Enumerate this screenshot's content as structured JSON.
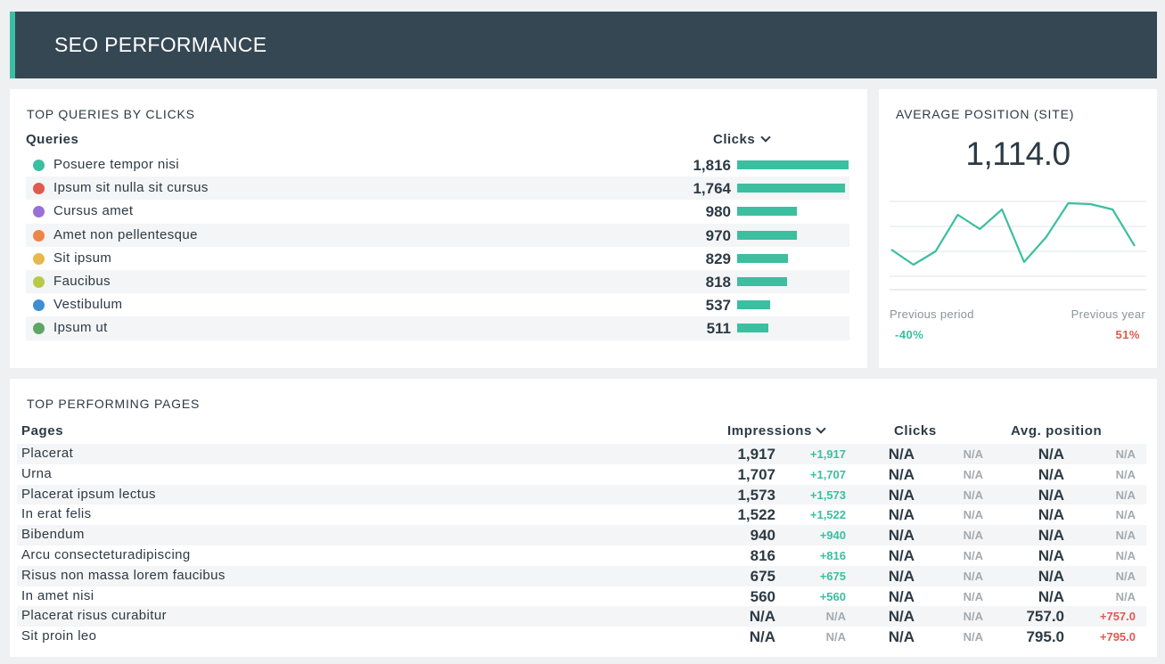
{
  "header": {
    "title": "SEO PERFORMANCE"
  },
  "queries": {
    "title": "TOP QUERIES BY CLICKS",
    "col_left": "Queries",
    "col_right": "Clicks",
    "max": 1816,
    "rows": [
      {
        "label": "Posuere tempor nisi",
        "value": "1,816",
        "num": 1816,
        "color": "#3bbfa0"
      },
      {
        "label": "Ipsum sit nulla sit cursus",
        "value": "1,764",
        "num": 1764,
        "color": "#e05a4f"
      },
      {
        "label": "Cursus amet",
        "value": "980",
        "num": 980,
        "color": "#9a6fd8"
      },
      {
        "label": "Amet non pellentesque",
        "value": "970",
        "num": 970,
        "color": "#ee8548"
      },
      {
        "label": "Sit ipsum",
        "value": "829",
        "num": 829,
        "color": "#e8b84a"
      },
      {
        "label": "Faucibus",
        "value": "818",
        "num": 818,
        "color": "#b8c94a"
      },
      {
        "label": "Vestibulum",
        "value": "537",
        "num": 537,
        "color": "#3d8fcf"
      },
      {
        "label": "Ipsum ut",
        "value": "511",
        "num": 511,
        "color": "#5ea566"
      }
    ]
  },
  "avg_position": {
    "title": "AVERAGE POSITION (SITE)",
    "value": "1,114.0",
    "prev_period_label": "Previous period",
    "prev_period_value": "-40%",
    "prev_year_label": "Previous year",
    "prev_year_value": "51%",
    "sparkline": [
      0.52,
      0.69,
      0.54,
      0.13,
      0.29,
      0.07,
      0.66,
      0.38,
      0.0,
      0.01,
      0.07,
      0.48
    ],
    "line_color": "#3bbfa0"
  },
  "pages": {
    "title": "TOP PERFORMING PAGES",
    "col_pages": "Pages",
    "col_impressions": "Impressions",
    "col_clicks": "Clicks",
    "col_avgpos": "Avg. position",
    "rows": [
      {
        "name": "Placerat",
        "imp": "1,917",
        "imp_d": "+1,917",
        "clk": "N/A",
        "clk_d": "N/A",
        "pos": "N/A",
        "pos_d": "N/A"
      },
      {
        "name": "Urna",
        "imp": "1,707",
        "imp_d": "+1,707",
        "clk": "N/A",
        "clk_d": "N/A",
        "pos": "N/A",
        "pos_d": "N/A"
      },
      {
        "name": "Placerat ipsum lectus",
        "imp": "1,573",
        "imp_d": "+1,573",
        "clk": "N/A",
        "clk_d": "N/A",
        "pos": "N/A",
        "pos_d": "N/A"
      },
      {
        "name": "In erat felis",
        "imp": "1,522",
        "imp_d": "+1,522",
        "clk": "N/A",
        "clk_d": "N/A",
        "pos": "N/A",
        "pos_d": "N/A"
      },
      {
        "name": "Bibendum",
        "imp": "940",
        "imp_d": "+940",
        "clk": "N/A",
        "clk_d": "N/A",
        "pos": "N/A",
        "pos_d": "N/A"
      },
      {
        "name": "Arcu consecteturadipiscing",
        "imp": "816",
        "imp_d": "+816",
        "clk": "N/A",
        "clk_d": "N/A",
        "pos": "N/A",
        "pos_d": "N/A"
      },
      {
        "name": "Risus non massa lorem faucibus",
        "imp": "675",
        "imp_d": "+675",
        "clk": "N/A",
        "clk_d": "N/A",
        "pos": "N/A",
        "pos_d": "N/A"
      },
      {
        "name": "In amet nisi",
        "imp": "560",
        "imp_d": "+560",
        "clk": "N/A",
        "clk_d": "N/A",
        "pos": "N/A",
        "pos_d": "N/A"
      },
      {
        "name": "Placerat risus curabitur",
        "imp": "N/A",
        "imp_d": "N/A",
        "clk": "N/A",
        "clk_d": "N/A",
        "pos": "757.0",
        "pos_d": "+757.0"
      },
      {
        "name": "Sit proin leo",
        "imp": "N/A",
        "imp_d": "N/A",
        "clk": "N/A",
        "clk_d": "N/A",
        "pos": "795.0",
        "pos_d": "+795.0"
      }
    ]
  }
}
